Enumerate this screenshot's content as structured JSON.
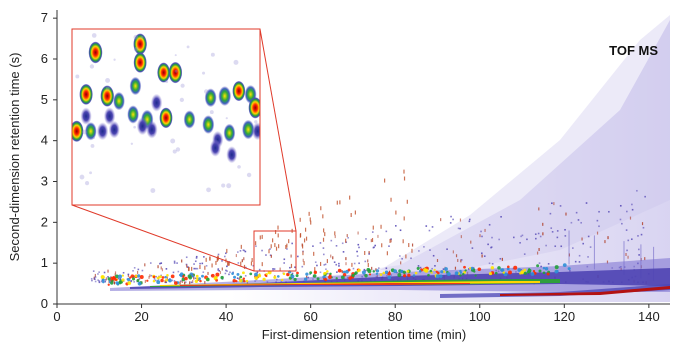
{
  "chart_data": {
    "type": "heatmap",
    "title": "",
    "annotation": "TOF MS",
    "xlabel": "First-dimension retention time (min)",
    "ylabel": "Second-dimension retention time (s)",
    "xlim": [
      0,
      145
    ],
    "ylim": [
      0,
      7.2
    ],
    "xticks": [
      "0",
      "20",
      "40",
      "60",
      "80",
      "100",
      "120",
      "140"
    ],
    "yticks": [
      "0",
      "1",
      "2",
      "3",
      "4",
      "5",
      "6",
      "7"
    ],
    "grid": false,
    "colormap": [
      "#6a5fc8",
      "#2ca02c",
      "#ffe600",
      "#ff2200",
      "#aa0000"
    ],
    "zoom_region": {
      "x": [
        47,
        55
      ],
      "y": [
        0.85,
        1.9
      ]
    },
    "inset_peaks": [
      {
        "x": 48.0,
        "y": 1.76,
        "i": 1.0
      },
      {
        "x": 49.9,
        "y": 1.81,
        "i": 0.95
      },
      {
        "x": 50.9,
        "y": 1.64,
        "i": 0.8
      },
      {
        "x": 49.9,
        "y": 1.7,
        "i": 0.85
      },
      {
        "x": 51.4,
        "y": 1.64,
        "i": 0.95
      },
      {
        "x": 49.7,
        "y": 1.56,
        "i": 0.55
      },
      {
        "x": 47.6,
        "y": 1.51,
        "i": 0.9
      },
      {
        "x": 48.5,
        "y": 1.5,
        "i": 0.95
      },
      {
        "x": 49.0,
        "y": 1.47,
        "i": 0.55
      },
      {
        "x": 50.6,
        "y": 1.46,
        "i": 0.5
      },
      {
        "x": 47.6,
        "y": 1.38,
        "i": 0.45
      },
      {
        "x": 48.6,
        "y": 1.38,
        "i": 0.5
      },
      {
        "x": 49.6,
        "y": 1.39,
        "i": 0.55
      },
      {
        "x": 50.2,
        "y": 1.36,
        "i": 0.7
      },
      {
        "x": 51.0,
        "y": 1.37,
        "i": 0.85
      },
      {
        "x": 52.0,
        "y": 1.36,
        "i": 0.55
      },
      {
        "x": 52.9,
        "y": 1.49,
        "i": 0.6
      },
      {
        "x": 53.5,
        "y": 1.5,
        "i": 0.75
      },
      {
        "x": 54.1,
        "y": 1.53,
        "i": 0.8
      },
      {
        "x": 54.6,
        "y": 1.51,
        "i": 0.6
      },
      {
        "x": 54.8,
        "y": 1.43,
        "i": 0.95
      },
      {
        "x": 47.2,
        "y": 1.29,
        "i": 0.95
      },
      {
        "x": 47.8,
        "y": 1.29,
        "i": 0.55
      },
      {
        "x": 48.3,
        "y": 1.29,
        "i": 0.5
      },
      {
        "x": 48.8,
        "y": 1.3,
        "i": 0.45
      },
      {
        "x": 50.0,
        "y": 1.32,
        "i": 0.5
      },
      {
        "x": 52.8,
        "y": 1.33,
        "i": 0.6
      },
      {
        "x": 53.7,
        "y": 1.28,
        "i": 0.55
      },
      {
        "x": 54.5,
        "y": 1.3,
        "i": 0.7
      },
      {
        "x": 54.9,
        "y": 1.29,
        "i": 0.5
      },
      {
        "x": 53.2,
        "y": 1.24,
        "i": 0.45
      },
      {
        "x": 50.4,
        "y": 1.3,
        "i": 0.5
      },
      {
        "x": 53.8,
        "y": 1.15,
        "i": 0.4
      },
      {
        "x": 53.1,
        "y": 1.19,
        "i": 0.45
      }
    ],
    "annotations": [
      {
        "text": "TOF MS",
        "position": "top-right"
      }
    ]
  }
}
